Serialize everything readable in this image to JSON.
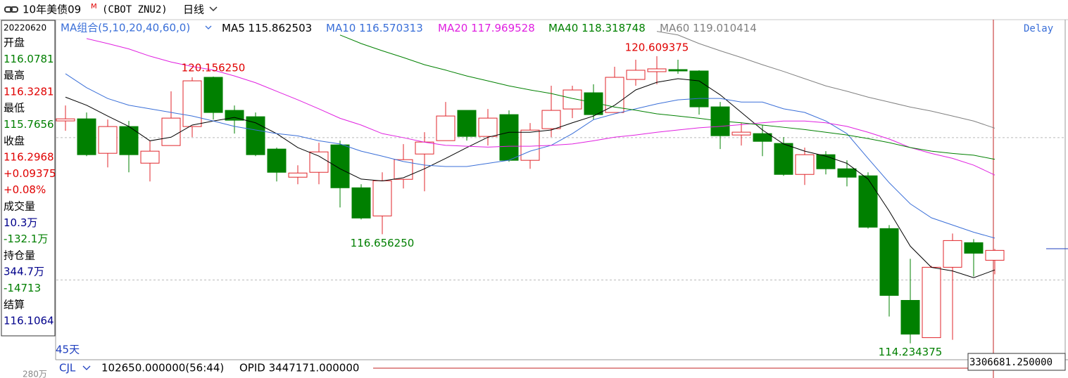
{
  "header": {
    "title": "10年美债09",
    "title_mark": "M",
    "symbol": "(CBOT ZNU2)",
    "period": "日线"
  },
  "info_panel": {
    "date": "20220620",
    "rows": [
      {
        "text": "开盘",
        "color": "#000000"
      },
      {
        "text": "116.0781",
        "color": "#007f00"
      },
      {
        "text": "最高",
        "color": "#000000"
      },
      {
        "text": "116.3281",
        "color": "#e00000"
      },
      {
        "text": "最低",
        "color": "#000000"
      },
      {
        "text": "115.7656",
        "color": "#007f00"
      },
      {
        "text": "收盘",
        "color": "#000000"
      },
      {
        "text": "116.2968",
        "color": "#e00000"
      },
      {
        "text": "+0.09375",
        "color": "#e00000"
      },
      {
        "text": "+0.08%",
        "color": "#e00000"
      },
      {
        "text": "成交量",
        "color": "#000000"
      },
      {
        "text": "10.3万",
        "color": "#00008b"
      },
      {
        "text": "-132.1万",
        "color": "#007f00"
      },
      {
        "text": "持仓量",
        "color": "#000000"
      },
      {
        "text": "344.7万",
        "color": "#00008b"
      },
      {
        "text": "-14713",
        "color": "#007f00"
      },
      {
        "text": "结算",
        "color": "#000000"
      },
      {
        "text": "116.1064",
        "color": "#00008b"
      }
    ]
  },
  "chart_data": {
    "type": "candlestick",
    "ma_label": "MA组合(5,10,20,40,60,0)",
    "open": [
      119.172,
      119.218,
      118.453,
      119.047,
      118.234,
      118.625,
      119.047,
      120.14,
      119.406,
      119.265,
      118.547,
      117.922,
      118.031,
      118.64,
      117.687,
      117.062,
      117.875,
      118.437,
      118.734,
      119.406,
      118.828,
      119.312,
      118.297,
      119.0,
      119.437,
      119.797,
      119.359,
      120.093,
      120.265,
      120.312,
      120.281,
      119.484,
      118.859,
      118.89,
      118.672,
      117.984,
      118.422,
      118.109,
      117.953,
      116.781,
      115.187,
      114.359,
      115.922,
      116.468,
      116.078
    ],
    "high": [
      119.515,
      119.359,
      119.203,
      119.172,
      118.734,
      119.828,
      120.14,
      120.15625,
      119.515,
      119.359,
      118.578,
      118.187,
      118.687,
      118.734,
      117.765,
      118.031,
      118.656,
      118.922,
      119.593,
      119.406,
      119.437,
      119.406,
      119.125,
      119.953,
      119.953,
      119.984,
      120.375,
      120.531,
      120.609375,
      120.531,
      120.297,
      119.593,
      119.125,
      119.078,
      118.812,
      118.578,
      118.5,
      118.297,
      118.031,
      116.859,
      116.109,
      115.953,
      116.672,
      116.547,
      116.328
    ],
    "low": [
      118.953,
      118.39,
      118.14,
      118.031,
      117.828,
      118.625,
      118.812,
      119.203,
      118.89,
      118.39,
      117.828,
      117.765,
      117.765,
      117.25,
      116.984,
      116.65625,
      117.672,
      117.609,
      118.734,
      118.734,
      118.625,
      118.265,
      118.109,
      118.812,
      119.234,
      119.203,
      119.359,
      119.953,
      119.984,
      120.218,
      119.312,
      118.547,
      118.625,
      118.39,
      117.953,
      117.75,
      117.984,
      117.718,
      116.781,
      114.828,
      114.234375,
      114.359,
      114.312,
      115.718,
      115.766
    ],
    "close": [
      119.218,
      118.422,
      119.047,
      118.422,
      118.5,
      119.234,
      120.062,
      119.359,
      119.187,
      118.422,
      118.031,
      118.015,
      118.484,
      117.687,
      117.015,
      117.843,
      118.312,
      118.703,
      119.281,
      118.828,
      119.234,
      118.297,
      118.968,
      119.406,
      119.859,
      119.312,
      120.14,
      120.297,
      120.328,
      120.281,
      119.484,
      118.843,
      118.922,
      118.718,
      117.984,
      118.422,
      118.109,
      117.922,
      116.812,
      115.297,
      114.437,
      115.922,
      116.515,
      116.234,
      116.297
    ],
    "up_color": "#e0262b",
    "down_color": "#008000",
    "ylim": [
      113.9,
      121.42
    ],
    "grid_levels": [
      118.8,
      115.64
    ],
    "annotations": [
      {
        "label": "120.156250",
        "value": 120.15625
      },
      {
        "label": "120.609375",
        "value": 120.609375
      },
      {
        "label": "116.656250",
        "value": 116.65625
      },
      {
        "label": "114.234375",
        "value": 114.234375
      }
    ],
    "series": [
      {
        "name": "MA5",
        "color": "#000000",
        "values": [
          119.7,
          119.52,
          119.28,
          119.05,
          118.73,
          118.81,
          119.08,
          119.17,
          119.25,
          119.13,
          118.89,
          118.58,
          118.39,
          118.11,
          117.88,
          117.84,
          117.91,
          118.11,
          118.34,
          118.58,
          118.81,
          118.92,
          118.92,
          118.97,
          119.13,
          119.28,
          119.52,
          119.86,
          120.03,
          120.11,
          120.06,
          119.75,
          119.36,
          118.97,
          118.66,
          118.5,
          118.39,
          118.23,
          117.88,
          117.17,
          116.39,
          115.92,
          115.84,
          115.69,
          115.862503
        ]
      },
      {
        "name": "MA10",
        "color": "#3a6fd8",
        "values": [
          120.22,
          119.91,
          119.67,
          119.52,
          119.44,
          119.36,
          119.28,
          119.17,
          119.05,
          118.97,
          118.89,
          118.84,
          118.73,
          118.66,
          118.5,
          118.39,
          118.27,
          118.19,
          118.16,
          118.16,
          118.23,
          118.3,
          118.5,
          118.63,
          118.89,
          119.2,
          119.33,
          119.44,
          119.55,
          119.64,
          119.67,
          119.67,
          119.59,
          119.59,
          119.44,
          119.36,
          119.17,
          118.89,
          118.34,
          117.8,
          117.33,
          117.02,
          116.86,
          116.7,
          116.570313
        ]
      },
      {
        "name": "MA20",
        "color": "#e020e0",
        "values": [
          null,
          121.0,
          120.89,
          120.77,
          120.61,
          120.48,
          120.38,
          120.3,
          120.17,
          120.02,
          119.83,
          119.64,
          119.44,
          119.23,
          119.08,
          118.89,
          118.8,
          118.7,
          118.63,
          118.61,
          118.59,
          118.61,
          118.61,
          118.63,
          118.66,
          118.73,
          118.81,
          118.86,
          118.92,
          118.97,
          119.02,
          119.05,
          119.09,
          119.13,
          119.17,
          119.17,
          119.13,
          119.05,
          118.92,
          118.77,
          118.58,
          118.45,
          118.34,
          118.19,
          117.969528
        ]
      },
      {
        "name": "MA40",
        "color": "#008000",
        "values": [
          null,
          null,
          null,
          null,
          null,
          null,
          null,
          null,
          null,
          null,
          null,
          null,
          null,
          121.08,
          120.89,
          120.73,
          120.58,
          120.42,
          120.3,
          120.17,
          120.06,
          119.95,
          119.86,
          119.78,
          119.67,
          119.58,
          119.48,
          119.41,
          119.33,
          119.28,
          119.23,
          119.17,
          119.13,
          119.08,
          119.03,
          118.98,
          118.92,
          118.86,
          118.78,
          118.69,
          118.58,
          118.5,
          118.45,
          118.41,
          118.318748
        ]
      },
      {
        "name": "MA60",
        "color": "#808080",
        "values": [
          null,
          null,
          null,
          null,
          null,
          null,
          null,
          null,
          null,
          null,
          null,
          null,
          null,
          null,
          null,
          null,
          null,
          null,
          null,
          null,
          null,
          null,
          null,
          null,
          null,
          null,
          null,
          null,
          121.16,
          121.08,
          120.89,
          120.73,
          120.58,
          120.42,
          120.27,
          120.11,
          119.95,
          119.83,
          119.7,
          119.59,
          119.48,
          119.39,
          119.28,
          119.17,
          119.010414
        ]
      }
    ],
    "status": "Delay",
    "day_count": "45天",
    "cursor_value": "3306681.250000"
  },
  "footer": {
    "indicator": "CJL",
    "volume": "102650.000000(56:44)",
    "open_interest": "OPID 3447171.000000",
    "scale_label": "280万"
  }
}
